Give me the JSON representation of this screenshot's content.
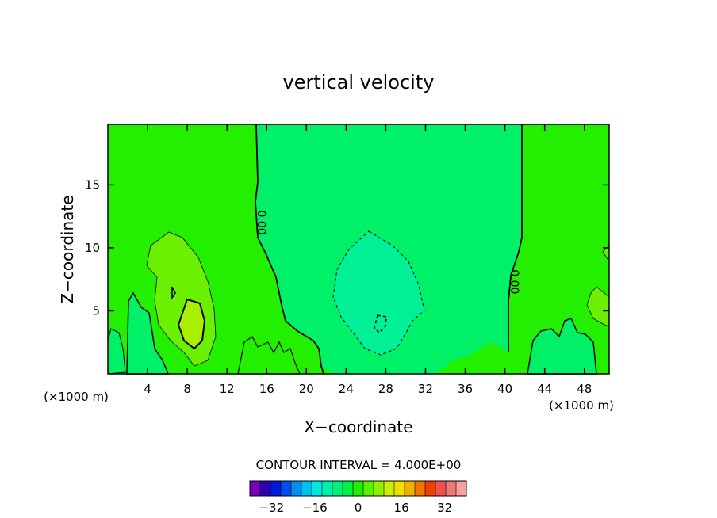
{
  "chart_data": {
    "type": "contour",
    "title": "vertical velocity",
    "xlabel": "X−coordinate",
    "ylabel": "Z−coordinate",
    "x_unit_left": "(×1000 m)",
    "x_unit_right": "(×1000 m)",
    "xlim": [
      0,
      50.5
    ],
    "ylim": [
      0,
      19.8
    ],
    "x_ticks": [
      4,
      8,
      12,
      16,
      20,
      24,
      28,
      32,
      36,
      40,
      44,
      48
    ],
    "y_ticks": [
      5,
      10,
      15
    ],
    "contour_interval_text": "CONTOUR INTERVAL = 4.000E+00",
    "contour_labels": [
      {
        "text": "0.00",
        "x": 15.5,
        "y": 12.0
      },
      {
        "text": "0.00",
        "x": 41.0,
        "y": 7.3
      }
    ],
    "field_features": [
      {
        "kind": "updraft",
        "center_x": 8.0,
        "center_z": 4.0,
        "level": 8
      },
      {
        "kind": "updraft",
        "center_x": 7.0,
        "center_z": 7.5,
        "level": 4
      },
      {
        "kind": "downdraft",
        "center_x": 26.0,
        "center_z": 6.0,
        "level": -4
      },
      {
        "kind": "updraft",
        "center_x": 49.0,
        "center_z": 5.0,
        "level": 4
      }
    ],
    "colorbar": {
      "tick_labels": [
        "−32",
        "−16",
        "0",
        "16",
        "32"
      ],
      "tick_values": [
        -32,
        -16,
        0,
        16,
        32
      ],
      "min": -40,
      "max": 40,
      "colors": [
        "#7a00c0",
        "#2a00b0",
        "#0018d8",
        "#0050f0",
        "#0090f0",
        "#00c0f0",
        "#00e8e0",
        "#00f0b0",
        "#00f080",
        "#00f048",
        "#20f000",
        "#5af000",
        "#90f000",
        "#c8f000",
        "#f0e000",
        "#f0b000",
        "#f07800",
        "#f04000",
        "#f05050",
        "#f07878",
        "#f8a0a0"
      ]
    }
  }
}
